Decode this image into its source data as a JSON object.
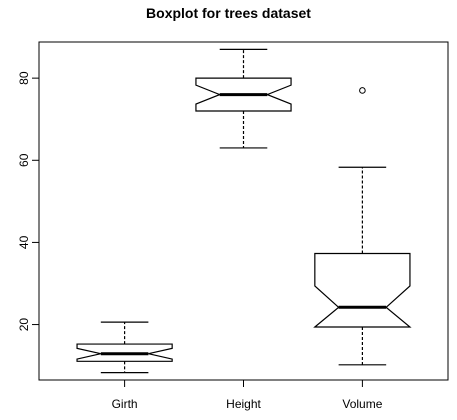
{
  "chart_data": {
    "type": "box",
    "title": "Boxplot for trees dataset",
    "xlabel": "",
    "ylabel": "",
    "ylim": [
      6.5,
      88.8
    ],
    "yticks": [
      20,
      40,
      60,
      80
    ],
    "notched": true,
    "grid": false,
    "categories": [
      "Girth",
      "Height",
      "Volume"
    ],
    "boxes": [
      {
        "name": "Girth",
        "whisker_low": 8.3,
        "q1": 11.05,
        "median": 12.9,
        "q3": 15.25,
        "whisker_high": 20.6,
        "notch_low": 11.6,
        "notch_high": 14.2,
        "outliers": []
      },
      {
        "name": "Height",
        "whisker_low": 63,
        "q1": 72,
        "median": 76,
        "q3": 80,
        "whisker_high": 87,
        "notch_low": 73.7,
        "notch_high": 78.3,
        "outliers": []
      },
      {
        "name": "Volume",
        "whisker_low": 10.2,
        "q1": 19.4,
        "median": 24.2,
        "q3": 37.3,
        "whisker_high": 58.3,
        "notch_low": 19.0,
        "notch_high": 29.4,
        "outliers": [
          77.0
        ]
      }
    ],
    "colors": {
      "stroke": "#000000",
      "fill": "#ffffff"
    }
  }
}
